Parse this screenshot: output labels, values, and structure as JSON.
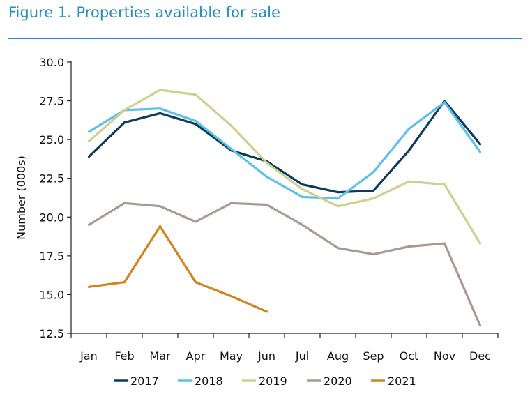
{
  "figure_title": "Figure 1. Properties available for sale",
  "chart_data": {
    "type": "line",
    "title": "Figure 1. Properties available for sale",
    "xlabel": "",
    "ylabel": "Number (000s)",
    "categories": [
      "Jan",
      "Feb",
      "Mar",
      "Apr",
      "May",
      "Jun",
      "Jul",
      "Aug",
      "Sep",
      "Oct",
      "Nov",
      "Dec"
    ],
    "ylim": [
      12.5,
      30.0
    ],
    "yticks": [
      "12.5",
      "15.0",
      "17.5",
      "20.0",
      "22.5",
      "25.0",
      "27.5",
      "30.0"
    ],
    "grid": false,
    "legend_position": "bottom",
    "series": [
      {
        "name": "2017",
        "color": "#0d3b5c",
        "values": [
          23.9,
          26.1,
          26.7,
          26.0,
          24.3,
          23.6,
          22.1,
          21.6,
          21.7,
          24.3,
          27.5,
          24.7
        ]
      },
      {
        "name": "2018",
        "color": "#5bc2e7",
        "values": [
          25.5,
          26.9,
          27.0,
          26.2,
          24.4,
          22.6,
          21.3,
          21.2,
          22.9,
          25.7,
          27.4,
          24.2
        ]
      },
      {
        "name": "2019",
        "color": "#cfd08f",
        "values": [
          24.9,
          26.9,
          28.2,
          27.9,
          25.9,
          23.5,
          21.8,
          20.7,
          21.2,
          22.3,
          22.1,
          18.3
        ]
      },
      {
        "name": "2020",
        "color": "#a89a90",
        "values": [
          19.5,
          20.9,
          20.7,
          19.7,
          20.9,
          20.8,
          19.5,
          18.0,
          17.6,
          18.1,
          18.3,
          13.0
        ]
      },
      {
        "name": "2021",
        "color": "#d4821c",
        "values": [
          15.5,
          15.8,
          19.4,
          15.8,
          14.9,
          13.9,
          null,
          null,
          null,
          null,
          null,
          null
        ]
      }
    ]
  }
}
